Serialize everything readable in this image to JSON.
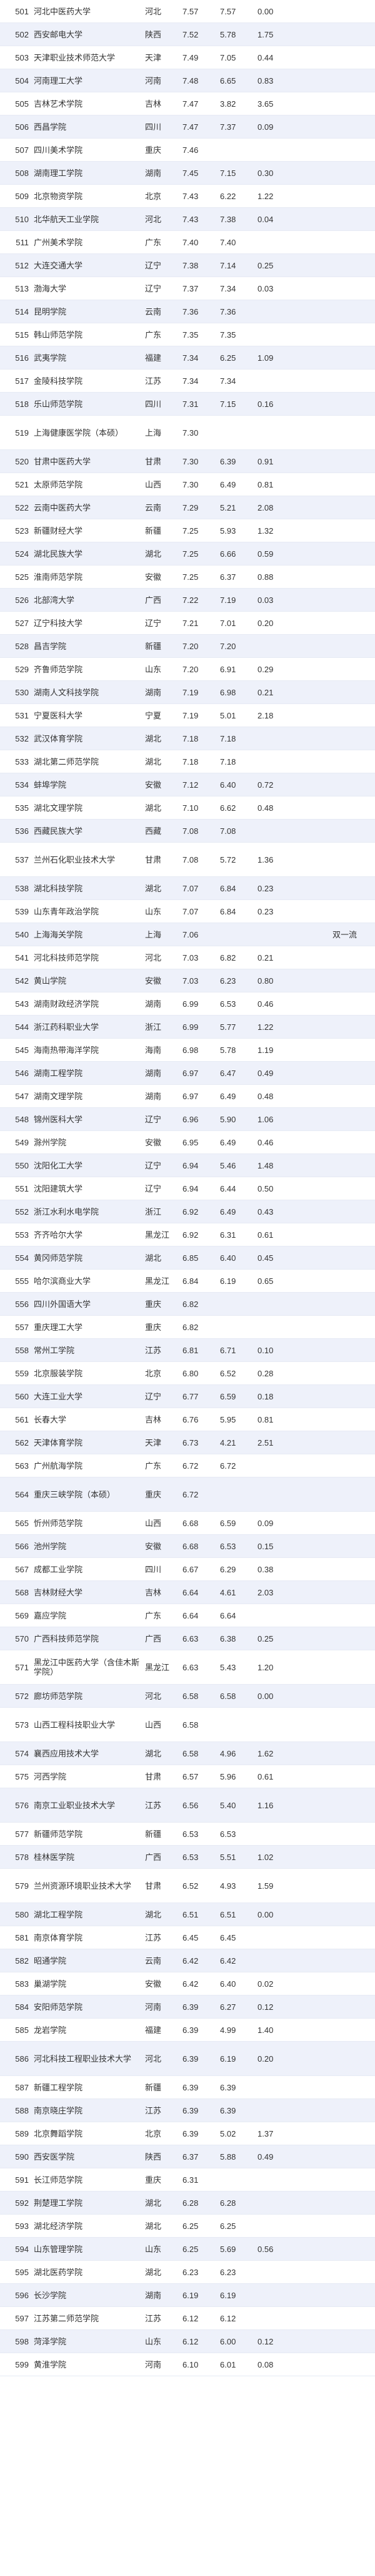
{
  "rows": [
    [
      "501",
      "河北中医药大学",
      "河北",
      "7.57",
      "7.57",
      "0.00",
      "",
      ""
    ],
    [
      "502",
      "西安邮电大学",
      "陕西",
      "7.52",
      "5.78",
      "1.75",
      "",
      ""
    ],
    [
      "503",
      "天津职业技术师范大学",
      "天津",
      "7.49",
      "7.05",
      "0.44",
      "",
      ""
    ],
    [
      "504",
      "河南理工大学",
      "河南",
      "7.48",
      "6.65",
      "0.83",
      "",
      ""
    ],
    [
      "505",
      "吉林艺术学院",
      "吉林",
      "7.47",
      "3.82",
      "3.65",
      "",
      ""
    ],
    [
      "506",
      "西昌学院",
      "四川",
      "7.47",
      "7.37",
      "0.09",
      "",
      ""
    ],
    [
      "507",
      "四川美术学院",
      "重庆",
      "7.46",
      "",
      "",
      "",
      ""
    ],
    [
      "508",
      "湖南理工学院",
      "湖南",
      "7.45",
      "7.15",
      "0.30",
      "",
      ""
    ],
    [
      "509",
      "北京物资学院",
      "北京",
      "7.43",
      "6.22",
      "1.22",
      "",
      ""
    ],
    [
      "510",
      "北华航天工业学院",
      "河北",
      "7.43",
      "7.38",
      "0.04",
      "",
      ""
    ],
    [
      "511",
      "广州美术学院",
      "广东",
      "7.40",
      "7.40",
      "",
      "",
      ""
    ],
    [
      "512",
      "大连交通大学",
      "辽宁",
      "7.38",
      "7.14",
      "0.25",
      "",
      ""
    ],
    [
      "513",
      "渤海大学",
      "辽宁",
      "7.37",
      "7.34",
      "0.03",
      "",
      ""
    ],
    [
      "514",
      "昆明学院",
      "云南",
      "7.36",
      "7.36",
      "",
      "",
      ""
    ],
    [
      "515",
      "韩山师范学院",
      "广东",
      "7.35",
      "7.35",
      "",
      "",
      ""
    ],
    [
      "516",
      "武夷学院",
      "福建",
      "7.34",
      "6.25",
      "1.09",
      "",
      ""
    ],
    [
      "517",
      "金陵科技学院",
      "江苏",
      "7.34",
      "7.34",
      "",
      "",
      ""
    ],
    [
      "518",
      "乐山师范学院",
      "四川",
      "7.31",
      "7.15",
      "0.16",
      "",
      ""
    ],
    [
      "519",
      "上海健康医学院（本硕）",
      "上海",
      "7.30",
      "",
      "",
      "",
      ""
    ],
    [
      "520",
      "甘肃中医药大学",
      "甘肃",
      "7.30",
      "6.39",
      "0.91",
      "",
      ""
    ],
    [
      "521",
      "太原师范学院",
      "山西",
      "7.30",
      "6.49",
      "0.81",
      "",
      ""
    ],
    [
      "522",
      "云南中医药大学",
      "云南",
      "7.29",
      "5.21",
      "2.08",
      "",
      ""
    ],
    [
      "523",
      "新疆财经大学",
      "新疆",
      "7.25",
      "5.93",
      "1.32",
      "",
      ""
    ],
    [
      "524",
      "湖北民族大学",
      "湖北",
      "7.25",
      "6.66",
      "0.59",
      "",
      ""
    ],
    [
      "525",
      "淮南师范学院",
      "安徽",
      "7.25",
      "6.37",
      "0.88",
      "",
      ""
    ],
    [
      "526",
      "北部湾大学",
      "广西",
      "7.22",
      "7.19",
      "0.03",
      "",
      ""
    ],
    [
      "527",
      "辽宁科技大学",
      "辽宁",
      "7.21",
      "7.01",
      "0.20",
      "",
      ""
    ],
    [
      "528",
      "昌吉学院",
      "新疆",
      "7.20",
      "7.20",
      "",
      "",
      ""
    ],
    [
      "529",
      "齐鲁师范学院",
      "山东",
      "7.20",
      "6.91",
      "0.29",
      "",
      ""
    ],
    [
      "530",
      "湖南人文科技学院",
      "湖南",
      "7.19",
      "6.98",
      "0.21",
      "",
      ""
    ],
    [
      "531",
      "宁夏医科大学",
      "宁夏",
      "7.19",
      "5.01",
      "2.18",
      "",
      ""
    ],
    [
      "532",
      "武汉体育学院",
      "湖北",
      "7.18",
      "7.18",
      "",
      "",
      ""
    ],
    [
      "533",
      "湖北第二师范学院",
      "湖北",
      "7.18",
      "7.18",
      "",
      "",
      ""
    ],
    [
      "534",
      "蚌埠学院",
      "安徽",
      "7.12",
      "6.40",
      "0.72",
      "",
      ""
    ],
    [
      "535",
      "湖北文理学院",
      "湖北",
      "7.10",
      "6.62",
      "0.48",
      "",
      ""
    ],
    [
      "536",
      "西藏民族大学",
      "西藏",
      "7.08",
      "7.08",
      "",
      "",
      ""
    ],
    [
      "537",
      "兰州石化职业技术大学",
      "甘肃",
      "7.08",
      "5.72",
      "1.36",
      "",
      ""
    ],
    [
      "538",
      "湖北科技学院",
      "湖北",
      "7.07",
      "6.84",
      "0.23",
      "",
      ""
    ],
    [
      "539",
      "山东青年政治学院",
      "山东",
      "7.07",
      "6.84",
      "0.23",
      "",
      ""
    ],
    [
      "540",
      "上海海关学院",
      "上海",
      "7.06",
      "",
      "",
      "",
      "双一流"
    ],
    [
      "541",
      "河北科技师范学院",
      "河北",
      "7.03",
      "6.82",
      "0.21",
      "",
      ""
    ],
    [
      "542",
      "黄山学院",
      "安徽",
      "7.03",
      "6.23",
      "0.80",
      "",
      ""
    ],
    [
      "543",
      "湖南财政经济学院",
      "湖南",
      "6.99",
      "6.53",
      "0.46",
      "",
      ""
    ],
    [
      "544",
      "浙江药科职业大学",
      "浙江",
      "6.99",
      "5.77",
      "1.22",
      "",
      ""
    ],
    [
      "545",
      "海南热带海洋学院",
      "海南",
      "6.98",
      "5.78",
      "1.19",
      "",
      ""
    ],
    [
      "546",
      "湖南工程学院",
      "湖南",
      "6.97",
      "6.47",
      "0.49",
      "",
      ""
    ],
    [
      "547",
      "湖南文理学院",
      "湖南",
      "6.97",
      "6.49",
      "0.48",
      "",
      ""
    ],
    [
      "548",
      "锦州医科大学",
      "辽宁",
      "6.96",
      "5.90",
      "1.06",
      "",
      ""
    ],
    [
      "549",
      "滁州学院",
      "安徽",
      "6.95",
      "6.49",
      "0.46",
      "",
      ""
    ],
    [
      "550",
      "沈阳化工大学",
      "辽宁",
      "6.94",
      "5.46",
      "1.48",
      "",
      ""
    ],
    [
      "551",
      "沈阳建筑大学",
      "辽宁",
      "6.94",
      "6.44",
      "0.50",
      "",
      ""
    ],
    [
      "552",
      "浙江水利水电学院",
      "浙江",
      "6.92",
      "6.49",
      "0.43",
      "",
      ""
    ],
    [
      "553",
      "齐齐哈尔大学",
      "黑龙江",
      "6.92",
      "6.31",
      "0.61",
      "",
      ""
    ],
    [
      "554",
      "黄冈师范学院",
      "湖北",
      "6.85",
      "6.40",
      "0.45",
      "",
      ""
    ],
    [
      "555",
      "哈尔滨商业大学",
      "黑龙江",
      "6.84",
      "6.19",
      "0.65",
      "",
      ""
    ],
    [
      "556",
      "四川外国语大学",
      "重庆",
      "6.82",
      "",
      "",
      "",
      ""
    ],
    [
      "557",
      "重庆理工大学",
      "重庆",
      "6.82",
      "",
      "",
      "",
      ""
    ],
    [
      "558",
      "常州工学院",
      "江苏",
      "6.81",
      "6.71",
      "0.10",
      "",
      ""
    ],
    [
      "559",
      "北京服装学院",
      "北京",
      "6.80",
      "6.52",
      "0.28",
      "",
      ""
    ],
    [
      "560",
      "大连工业大学",
      "辽宁",
      "6.77",
      "6.59",
      "0.18",
      "",
      ""
    ],
    [
      "561",
      "长春大学",
      "吉林",
      "6.76",
      "5.95",
      "0.81",
      "",
      ""
    ],
    [
      "562",
      "天津体育学院",
      "天津",
      "6.73",
      "4.21",
      "2.51",
      "",
      ""
    ],
    [
      "563",
      "广州航海学院",
      "广东",
      "6.72",
      "6.72",
      "",
      "",
      ""
    ],
    [
      "564",
      "重庆三峡学院（本硕）",
      "重庆",
      "6.72",
      "",
      "",
      "",
      ""
    ],
    [
      "565",
      "忻州师范学院",
      "山西",
      "6.68",
      "6.59",
      "0.09",
      "",
      ""
    ],
    [
      "566",
      "池州学院",
      "安徽",
      "6.68",
      "6.53",
      "0.15",
      "",
      ""
    ],
    [
      "567",
      "成都工业学院",
      "四川",
      "6.67",
      "6.29",
      "0.38",
      "",
      ""
    ],
    [
      "568",
      "吉林财经大学",
      "吉林",
      "6.64",
      "4.61",
      "2.03",
      "",
      ""
    ],
    [
      "569",
      "嘉应学院",
      "广东",
      "6.64",
      "6.64",
      "",
      "",
      ""
    ],
    [
      "570",
      "广西科技师范学院",
      "广西",
      "6.63",
      "6.38",
      "0.25",
      "",
      ""
    ],
    [
      "571",
      "黑龙江中医药大学（含佳木斯学院）",
      "黑龙江",
      "6.63",
      "5.43",
      "1.20",
      "",
      ""
    ],
    [
      "572",
      "廊坊师范学院",
      "河北",
      "6.58",
      "6.58",
      "0.00",
      "",
      ""
    ],
    [
      "573",
      "山西工程科技职业大学",
      "山西",
      "6.58",
      "",
      "",
      "",
      ""
    ],
    [
      "574",
      "襄西应用技术大学",
      "湖北",
      "6.58",
      "4.96",
      "1.62",
      "",
      ""
    ],
    [
      "575",
      "河西学院",
      "甘肃",
      "6.57",
      "5.96",
      "0.61",
      "",
      ""
    ],
    [
      "576",
      "南京工业职业技术大学",
      "江苏",
      "6.56",
      "5.40",
      "1.16",
      "",
      ""
    ],
    [
      "577",
      "新疆师范学院",
      "新疆",
      "6.53",
      "6.53",
      "",
      "",
      ""
    ],
    [
      "578",
      "桂林医学院",
      "广西",
      "6.53",
      "5.51",
      "1.02",
      "",
      ""
    ],
    [
      "579",
      "兰州资源环境职业技术大学",
      "甘肃",
      "6.52",
      "4.93",
      "1.59",
      "",
      ""
    ],
    [
      "580",
      "湖北工程学院",
      "湖北",
      "6.51",
      "6.51",
      "0.00",
      "",
      ""
    ],
    [
      "581",
      "南京体育学院",
      "江苏",
      "6.45",
      "6.45",
      "",
      "",
      ""
    ],
    [
      "582",
      "昭通学院",
      "云南",
      "6.42",
      "6.42",
      "",
      "",
      ""
    ],
    [
      "583",
      "巢湖学院",
      "安徽",
      "6.42",
      "6.40",
      "0.02",
      "",
      ""
    ],
    [
      "584",
      "安阳师范学院",
      "河南",
      "6.39",
      "6.27",
      "0.12",
      "",
      ""
    ],
    [
      "585",
      "龙岩学院",
      "福建",
      "6.39",
      "4.99",
      "1.40",
      "",
      ""
    ],
    [
      "586",
      "河北科技工程职业技术大学",
      "河北",
      "6.39",
      "6.19",
      "0.20",
      "",
      ""
    ],
    [
      "587",
      "新疆工程学院",
      "新疆",
      "6.39",
      "6.39",
      "",
      "",
      ""
    ],
    [
      "588",
      "南京晓庄学院",
      "江苏",
      "6.39",
      "6.39",
      "",
      "",
      ""
    ],
    [
      "589",
      "北京舞蹈学院",
      "北京",
      "6.39",
      "5.02",
      "1.37",
      "",
      ""
    ],
    [
      "590",
      "西安医学院",
      "陕西",
      "6.37",
      "5.88",
      "0.49",
      "",
      ""
    ],
    [
      "591",
      "长江师范学院",
      "重庆",
      "6.31",
      "",
      "",
      "",
      ""
    ],
    [
      "592",
      "荆楚理工学院",
      "湖北",
      "6.28",
      "6.28",
      "",
      "",
      ""
    ],
    [
      "593",
      "湖北经济学院",
      "湖北",
      "6.25",
      "6.25",
      "",
      "",
      ""
    ],
    [
      "594",
      "山东管理学院",
      "山东",
      "6.25",
      "5.69",
      "0.56",
      "",
      ""
    ],
    [
      "595",
      "湖北医药学院",
      "湖北",
      "6.23",
      "6.23",
      "",
      "",
      ""
    ],
    [
      "596",
      "长沙学院",
      "湖南",
      "6.19",
      "6.19",
      "",
      "",
      ""
    ],
    [
      "597",
      "江苏第二师范学院",
      "江苏",
      "6.12",
      "6.12",
      "",
      "",
      ""
    ],
    [
      "598",
      "菏泽学院",
      "山东",
      "6.12",
      "6.00",
      "0.12",
      "",
      ""
    ],
    [
      "599",
      "黄淮学院",
      "河南",
      "6.10",
      "6.01",
      "0.08",
      "",
      ""
    ]
  ]
}
